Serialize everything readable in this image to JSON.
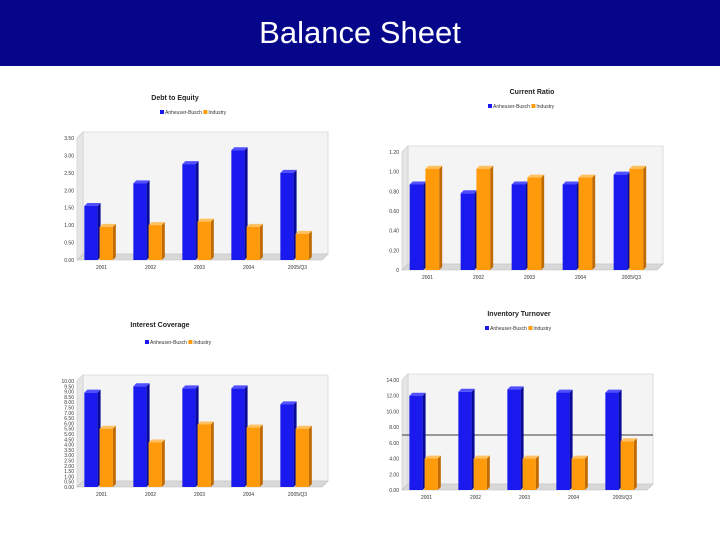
{
  "slide": {
    "title": "Balance Sheet"
  },
  "colors": {
    "header_bg": "#06068a",
    "series_primary": "#1a1aee",
    "series_primary_top": "#5050ff",
    "series_primary_side": "#0a0a99",
    "series_secondary": "#ff9a0a",
    "series_secondary_top": "#ffc060",
    "series_secondary_side": "#c06a00"
  },
  "chart_data": [
    {
      "type": "bar",
      "title": "Debt to Equity",
      "categories": [
        "2001",
        "2002",
        "2003",
        "2004",
        "2005/Q3"
      ],
      "series": [
        {
          "name": "Anheuser-Busch",
          "values": [
            1.55,
            2.2,
            2.75,
            3.15,
            2.5
          ]
        },
        {
          "name": "Industry",
          "values": [
            0.95,
            1.0,
            1.1,
            0.95,
            0.75
          ]
        }
      ],
      "ylim": [
        0,
        3.5
      ],
      "yticks": [
        "0.00",
        "0.50",
        "1.00",
        "1.50",
        "2.00",
        "2.50",
        "3.00",
        "3.50"
      ],
      "legend": "top",
      "grid": false,
      "xlabel": "",
      "ylabel": ""
    },
    {
      "type": "bar",
      "title": "Current Ratio",
      "categories": [
        "2001",
        "2002",
        "2003",
        "2004",
        "2005/Q3"
      ],
      "series": [
        {
          "name": "Anheuser-Busch",
          "values": [
            0.87,
            0.78,
            0.87,
            0.87,
            0.97
          ]
        },
        {
          "name": "Industry",
          "values": [
            1.03,
            1.03,
            0.94,
            0.94,
            1.03
          ]
        }
      ],
      "ylim": [
        0,
        1.2
      ],
      "yticks": [
        "0",
        "0.20",
        "0.40",
        "0.60",
        "0.80",
        "1.00",
        "1.20"
      ],
      "legend": "top",
      "grid": false,
      "xlabel": "",
      "ylabel": ""
    },
    {
      "type": "bar",
      "title": "Interest Coverage",
      "categories": [
        "2001",
        "2002",
        "2003",
        "2004",
        "2005/Q3"
      ],
      "series": [
        {
          "name": "Anheuser-Busch",
          "values": [
            8.9,
            9.5,
            9.3,
            9.3,
            7.8
          ]
        },
        {
          "name": "Industry",
          "values": [
            5.5,
            4.2,
            5.9,
            5.6,
            5.5
          ]
        }
      ],
      "ylim": [
        0,
        10
      ],
      "yticks": [
        "0.00",
        "0.50",
        "1.00",
        "1.50",
        "2.00",
        "2.50",
        "3.00",
        "3.50",
        "4.00",
        "4.50",
        "5.00",
        "5.50",
        "6.00",
        "6.50",
        "7.00",
        "7.50",
        "8.00",
        "8.50",
        "9.00",
        "9.50",
        "10.00"
      ],
      "legend": "top-left",
      "grid": false,
      "xlabel": "",
      "ylabel": ""
    },
    {
      "type": "bar",
      "title": "Inventory Turnover",
      "categories": [
        "2001",
        "2002",
        "2003",
        "2004",
        "2005/Q3"
      ],
      "series": [
        {
          "name": "Anheuser-Busch",
          "values": [
            12.0,
            12.5,
            12.8,
            12.4,
            12.4
          ]
        },
        {
          "name": "Industry",
          "values": [
            4.0,
            4.0,
            4.0,
            4.0,
            6.2
          ]
        }
      ],
      "ylim": [
        0,
        14
      ],
      "yticks": [
        "0.00",
        "2.00",
        "4.00",
        "6.00",
        "8.00",
        "10.00",
        "12.00",
        "14.00"
      ],
      "legend": "top",
      "grid": false,
      "reference_line": 7.0,
      "xlabel": "",
      "ylabel": ""
    }
  ]
}
